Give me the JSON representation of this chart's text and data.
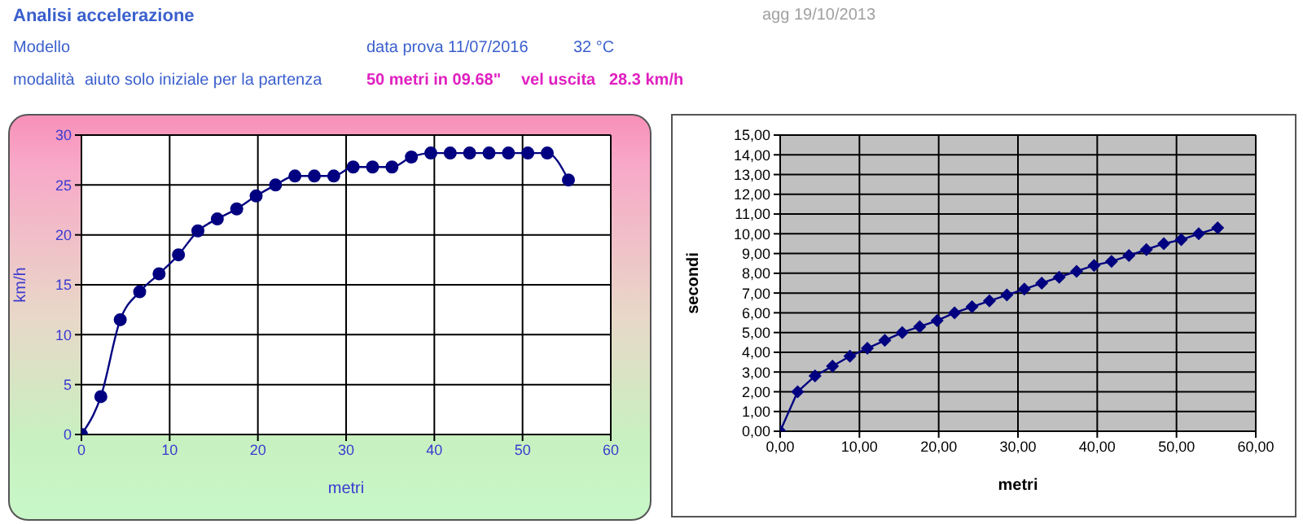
{
  "chart_data": [
    {
      "type": "line",
      "title": "Analisi accelerazione",
      "annotations": [
        "agg 19/10/2013",
        "Modello",
        "data prova",
        "11/07/2016",
        "32 °C",
        "modalità",
        "aiuto solo iniziale per la partenza",
        "50 metri in 09.68\"",
        "vel uscita",
        "28.3 km/h"
      ],
      "xlabel": "metri",
      "ylabel": "km/h",
      "x": [
        0,
        2.2,
        4.4,
        6.6,
        8.8,
        11.0,
        13.2,
        15.4,
        17.6,
        19.8,
        22.0,
        24.2,
        26.4,
        28.6,
        30.8,
        33.0,
        35.2,
        37.4,
        39.6,
        41.8,
        44.0,
        46.2,
        48.4,
        50.6,
        52.8,
        55.2
      ],
      "series": [
        {
          "color": "#000080",
          "values": [
            0,
            3.8,
            11.5,
            14.3,
            16.1,
            18.0,
            20.4,
            21.6,
            22.6,
            23.9,
            25.0,
            25.9,
            25.9,
            25.9,
            26.8,
            26.8,
            26.8,
            27.8,
            28.2,
            28.2,
            28.2,
            28.2,
            28.2,
            28.2,
            28.2,
            25.5
          ]
        }
      ],
      "xlim": [
        0,
        60
      ],
      "xticks": [
        0,
        10,
        20,
        30,
        40,
        50,
        60
      ],
      "ylim": [
        0,
        30
      ],
      "yticks": [
        0,
        5,
        10,
        15,
        20,
        25,
        30
      ],
      "grid": true,
      "marker": "circle"
    },
    {
      "type": "line",
      "xlabel": "metri",
      "ylabel": "secondi",
      "x": [
        0,
        2.2,
        4.4,
        6.6,
        8.8,
        11.0,
        13.2,
        15.4,
        17.6,
        19.8,
        22.0,
        24.2,
        26.4,
        28.6,
        30.8,
        33.0,
        35.2,
        37.4,
        39.6,
        41.8,
        44.0,
        46.2,
        48.4,
        50.6,
        52.8,
        55.2
      ],
      "series": [
        {
          "color": "#000080",
          "values": [
            0,
            2.0,
            2.8,
            3.3,
            3.8,
            4.2,
            4.6,
            5.0,
            5.3,
            5.6,
            6.0,
            6.3,
            6.6,
            6.9,
            7.2,
            7.5,
            7.8,
            8.1,
            8.4,
            8.6,
            8.9,
            9.2,
            9.5,
            9.7,
            10.0,
            10.3
          ]
        }
      ],
      "xlim": [
        0,
        60
      ],
      "xticks": [
        {
          "value": 0,
          "label": "0,00"
        },
        {
          "value": 10,
          "label": "10,00"
        },
        {
          "value": 20,
          "label": "20,00"
        },
        {
          "value": 30,
          "label": "30,00"
        },
        {
          "value": 40,
          "label": "40,00"
        },
        {
          "value": 50,
          "label": "50,00"
        },
        {
          "value": 60,
          "label": "60,00"
        }
      ],
      "ylim": [
        0,
        15
      ],
      "yticks": [
        {
          "value": 0,
          "label": "0,00"
        },
        {
          "value": 1,
          "label": "1,00"
        },
        {
          "value": 2,
          "label": "2,00"
        },
        {
          "value": 3,
          "label": "3,00"
        },
        {
          "value": 4,
          "label": "4,00"
        },
        {
          "value": 5,
          "label": "5,00"
        },
        {
          "value": 6,
          "label": "6,00"
        },
        {
          "value": 7,
          "label": "7,00"
        },
        {
          "value": 8,
          "label": "8,00"
        },
        {
          "value": 9,
          "label": "9,00"
        },
        {
          "value": 10,
          "label": "10,00"
        },
        {
          "value": 11,
          "label": "11,00"
        },
        {
          "value": 12,
          "label": "12,00"
        },
        {
          "value": 13,
          "label": "13,00"
        },
        {
          "value": 14,
          "label": "14,00"
        },
        {
          "value": 15,
          "label": "15,00"
        }
      ],
      "grid": true,
      "marker": "diamond"
    }
  ]
}
